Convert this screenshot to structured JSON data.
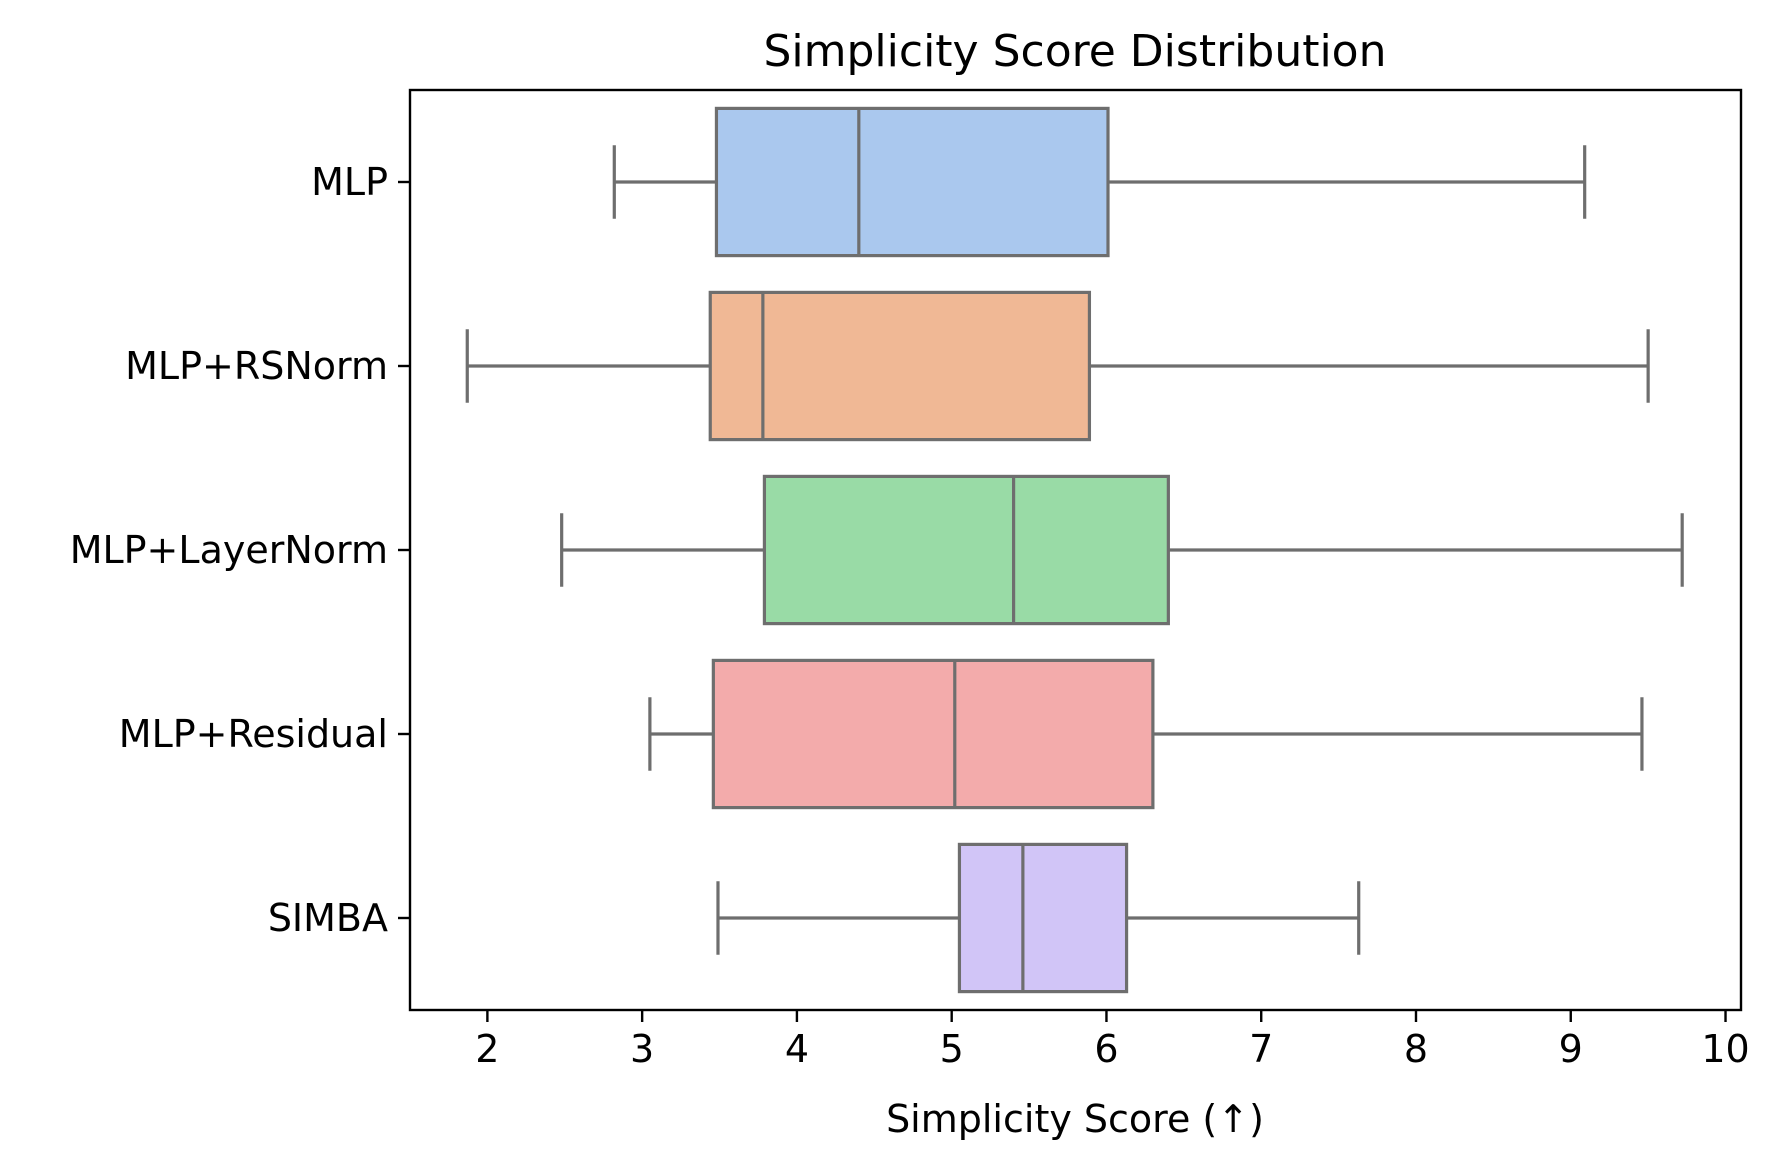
{
  "chart_data": {
    "type": "boxplot",
    "orientation": "horizontal",
    "title": "Simplicity Score Distribution",
    "xlabel": "Simplicity Score (↑)",
    "ylabel": "",
    "xlim": [
      1.5,
      10.1
    ],
    "xticks": [
      2,
      3,
      4,
      5,
      6,
      7,
      8,
      9,
      10
    ],
    "grid": false,
    "legend": "none",
    "box_edge_color": "#6e6e6e",
    "series": [
      {
        "name": "MLP",
        "whisker_low": 2.82,
        "q1": 3.48,
        "median": 4.4,
        "q3": 6.01,
        "whisker_high": 9.09,
        "color": "#aac8ee"
      },
      {
        "name": "MLP+RSNorm",
        "whisker_low": 1.87,
        "q1": 3.44,
        "median": 3.78,
        "q3": 5.89,
        "whisker_high": 9.5,
        "color": "#f0b895"
      },
      {
        "name": "MLP+LayerNorm",
        "whisker_low": 2.48,
        "q1": 3.79,
        "median": 5.4,
        "q3": 6.4,
        "whisker_high": 9.72,
        "color": "#99dba6"
      },
      {
        "name": "MLP+Residual",
        "whisker_low": 3.05,
        "q1": 3.46,
        "median": 5.02,
        "q3": 6.3,
        "whisker_high": 9.46,
        "color": "#f3abab"
      },
      {
        "name": "SIMBA",
        "whisker_low": 3.49,
        "q1": 5.05,
        "median": 5.46,
        "q3": 6.13,
        "whisker_high": 7.63,
        "color": "#d1c5f7"
      }
    ]
  }
}
